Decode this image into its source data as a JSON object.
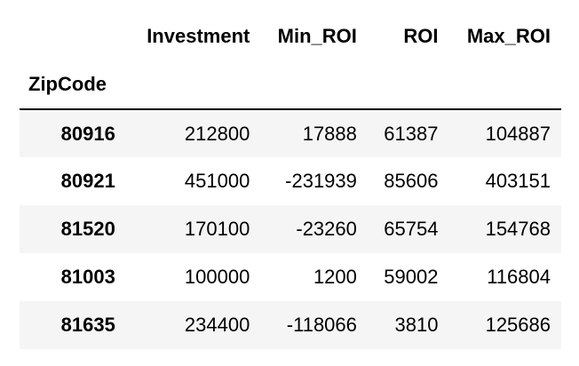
{
  "table": {
    "columns": [
      "Investment",
      "Min_ROI",
      "ROI",
      "Max_ROI"
    ],
    "index_name": "ZipCode",
    "rows": [
      {
        "zip": "80916",
        "values": [
          "212800",
          "17888",
          "61387",
          "104887"
        ]
      },
      {
        "zip": "80921",
        "values": [
          "451000",
          "-231939",
          "85606",
          "403151"
        ]
      },
      {
        "zip": "81520",
        "values": [
          "170100",
          "-23260",
          "65754",
          "154768"
        ]
      },
      {
        "zip": "81003",
        "values": [
          "100000",
          "1200",
          "59002",
          "116804"
        ]
      },
      {
        "zip": "81635",
        "values": [
          "234400",
          "-118066",
          "3810",
          "125686"
        ]
      }
    ]
  }
}
